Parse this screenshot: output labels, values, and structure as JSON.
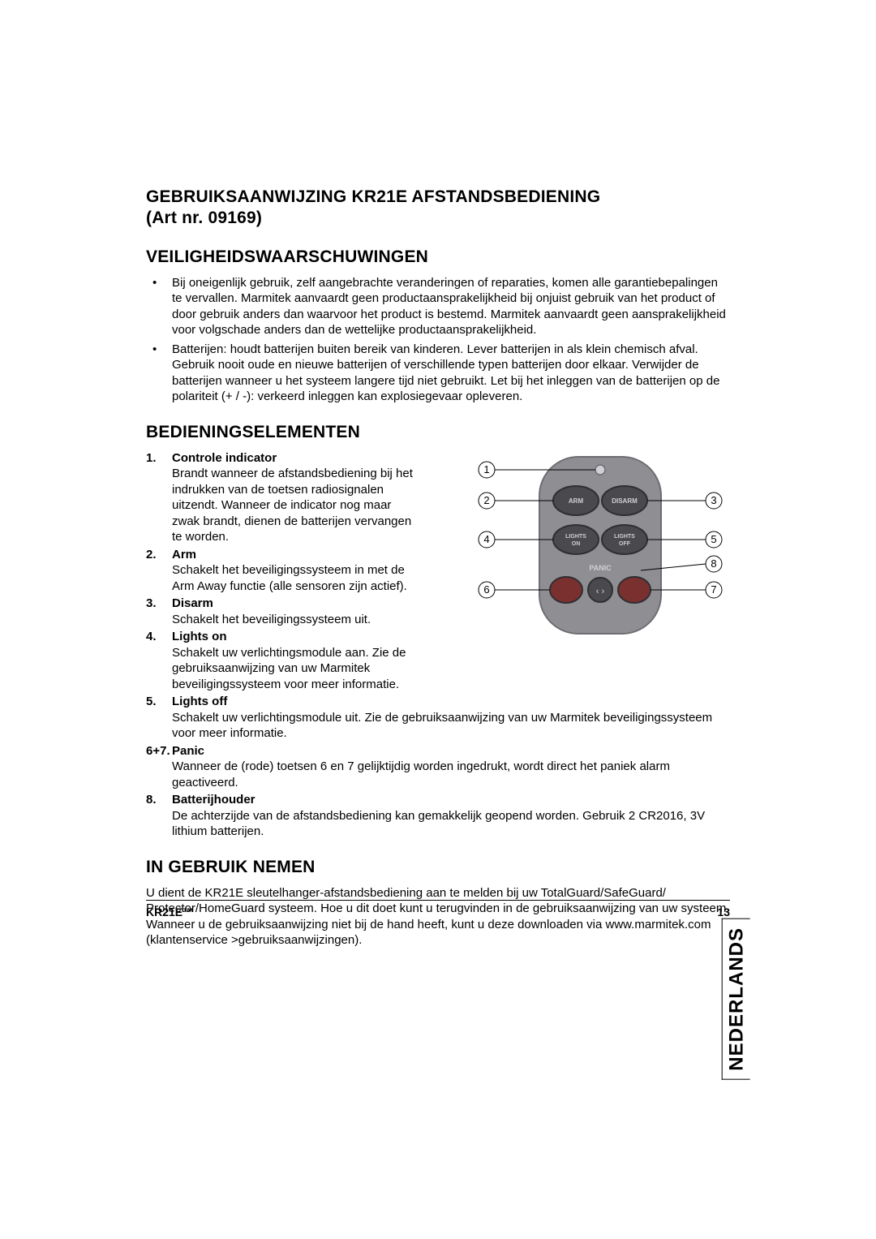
{
  "header": {
    "title_line1": "GEBRUIKSAANWIJZING KR21E AFSTANDSBEDIENING",
    "title_line2": "(Art nr. 09169)"
  },
  "section_safety": {
    "title": "VEILIGHEIDSWAARSCHUWINGEN",
    "bullets": [
      "Bij oneigenlijk gebruik, zelf aangebrachte veranderingen of reparaties, komen alle garantiebepalingen te vervallen. Marmitek aanvaardt geen productaansprakelijkheid bij onjuist gebruik van het product of door gebruik anders dan waarvoor het product is bestemd. Marmitek aanvaardt geen aansprakelijkheid voor volgschade anders dan de wettelijke productaansprakelijkheid.",
      "Batterijen: houdt batterijen buiten bereik van kinderen. Lever batterijen in als klein chemisch afval. Gebruik nooit oude en nieuwe batterijen of verschillende typen batterijen door elkaar. Verwijder de batterijen wanneer u het systeem langere tijd niet gebruikt. Let bij het inleggen van de batterijen op de polariteit (+ / -): verkeerd inleggen kan explosiegevaar opleveren."
    ]
  },
  "section_controls": {
    "title": "BEDIENINGSELEMENTEN",
    "items": [
      {
        "num": "1.",
        "term": "Controle indicator",
        "desc": "Brandt wanneer de afstandsbediening bij het indrukken van de toetsen radiosignalen uitzendt. Wanneer de indicator nog maar zwak brandt, dienen de batterijen vervangen te worden.",
        "narrow": true
      },
      {
        "num": "2.",
        "term": "Arm",
        "desc": "Schakelt het beveiligingssysteem in met de Arm Away functie (alle sensoren zijn actief).",
        "narrow": true
      },
      {
        "num": "3.",
        "term": "Disarm",
        "desc": "Schakelt het beveiligingssysteem uit.",
        "narrow": true
      },
      {
        "num": "4.",
        "term": "Lights on",
        "desc": "Schakelt uw verlichtingsmodule aan. Zie de gebruiksaanwijzing van uw Marmitek beveiligingssysteem voor meer informatie.",
        "narrow": true
      },
      {
        "num": "5.",
        "term": "Lights off",
        "desc": "Schakelt uw verlichtingsmodule uit. Zie de gebruiksaanwijzing van uw Marmitek beveiligingssysteem voor meer informatie.",
        "narrow": false
      },
      {
        "num": "6+7.",
        "term": "Panic",
        "desc": "Wanneer de (rode) toetsen 6 en 7 gelijktijdig worden ingedrukt, wordt direct het paniek alarm geactiveerd.",
        "narrow": false
      },
      {
        "num": "8.",
        "term": "Batterijhouder",
        "desc": "De achterzijde van de afstandsbediening kan gemakkelijk geopend worden. Gebruik 2 CR2016, 3V lithium batterijen.",
        "narrow": false
      }
    ]
  },
  "section_usage": {
    "title": "IN GEBRUIK NEMEN",
    "para": "U dient de KR21E sleutelhanger-afstandsbediening aan te melden bij uw TotalGuard/SafeGuard/ Protector/HomeGuard systeem. Hoe u dit doet kunt u terugvinden in de gebruiksaanwijzing van uw systeem. Wanneer u de gebruiksaanwijzing niet bij de hand heeft, kunt u deze downloaden via www.marmitek.com (klantenservice >gebruiksaanwijzingen)."
  },
  "footer": {
    "model": "KR21E™",
    "page": "13"
  },
  "side_tab": "NEDERLANDS",
  "figure": {
    "body_fill": "#8f8f93",
    "body_stroke": "#6d6d72",
    "button_fill_dark": "#4a4a4e",
    "button_fill_red": "#7b3030",
    "button_stroke": "#2f2f33",
    "led_fill": "#cfd0d5",
    "label_color": "#cfd0d5",
    "label_fontsize": 8,
    "callout_color": "#000000",
    "callout_fontsize": 13,
    "buttons": {
      "arm": "ARM",
      "disarm": "DISARM",
      "lights_on_1": "LIGHTS",
      "lights_on_2": "ON",
      "lights_off_1": "LIGHTS",
      "lights_off_2": "OFF",
      "panic": "PANIC"
    },
    "callouts": [
      "1",
      "2",
      "3",
      "4",
      "5",
      "6",
      "7",
      "8"
    ]
  }
}
